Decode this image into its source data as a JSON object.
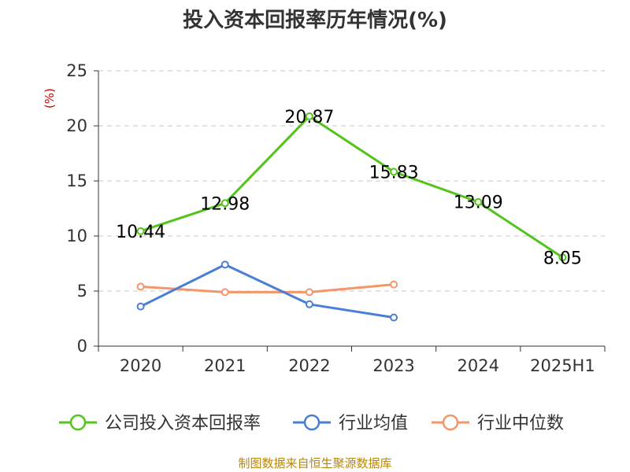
{
  "chart_data": {
    "type": "line",
    "title": "投入资本回报率历年情况(%)",
    "ylabel": "(%)",
    "categories": [
      "2020",
      "2021",
      "2022",
      "2023",
      "2024",
      "2025H1"
    ],
    "ylim": [
      0,
      25
    ],
    "yticks": [
      "0",
      "5",
      "10",
      "15",
      "20",
      "25"
    ],
    "grid": true,
    "legend_position": "bottom",
    "series": [
      {
        "name": "公司投入资本回报率",
        "color": "#52c41a",
        "values": [
          10.44,
          12.98,
          20.87,
          15.83,
          13.09,
          8.05
        ],
        "labels": [
          "10.44",
          "12.98",
          "20.87",
          "15.83",
          "13.09",
          "8.05"
        ]
      },
      {
        "name": "行业均值",
        "color": "#4a7fd6",
        "values": [
          3.6,
          7.4,
          3.8,
          2.6,
          null,
          null
        ]
      },
      {
        "name": "行业中位数",
        "color": "#f4956a",
        "values": [
          5.4,
          4.9,
          4.9,
          5.6,
          null,
          null
        ]
      }
    ]
  },
  "source": "制图数据来自恒生聚源数据库"
}
